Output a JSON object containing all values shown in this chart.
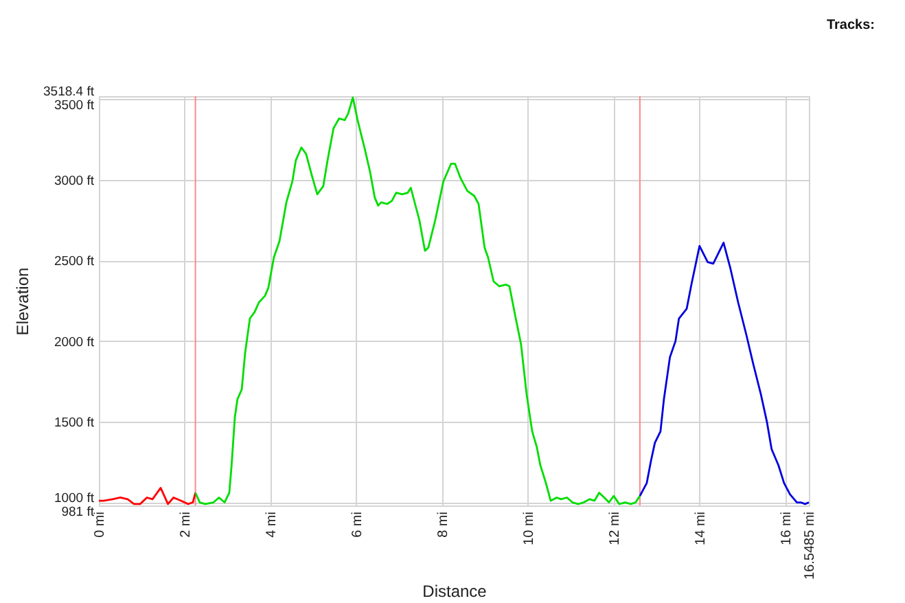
{
  "chart_data": {
    "type": "line",
    "xlabel": "Distance",
    "ylabel": "Elevation",
    "legend_title": "Tracks:",
    "grid": true,
    "xlim": [
      0,
      16.5485
    ],
    "ylim": [
      981,
      3518.4
    ],
    "xticks": [
      {
        "value": 0,
        "label": "0 mi"
      },
      {
        "value": 2,
        "label": "2 mi"
      },
      {
        "value": 4,
        "label": "4 mi"
      },
      {
        "value": 6,
        "label": "6 mi"
      },
      {
        "value": 8,
        "label": "8 mi"
      },
      {
        "value": 10,
        "label": "10 mi"
      },
      {
        "value": 12,
        "label": "12 mi"
      },
      {
        "value": 14,
        "label": "14 mi"
      },
      {
        "value": 16,
        "label": "16 mi"
      },
      {
        "value": 16.5485,
        "label": "16.5485 mi"
      }
    ],
    "yticks": [
      {
        "value": 981,
        "label": "981 ft"
      },
      {
        "value": 1000,
        "label": "1000 ft"
      },
      {
        "value": 1500,
        "label": "1500 ft"
      },
      {
        "value": 2000,
        "label": "2000 ft"
      },
      {
        "value": 2500,
        "label": "2500 ft"
      },
      {
        "value": 3000,
        "label": "3000 ft"
      },
      {
        "value": 3500,
        "label": "3500 ft"
      },
      {
        "value": 3518.4,
        "label": "3518.4 ft"
      }
    ],
    "ref_lines": [
      {
        "axis": "x",
        "value": 2.25,
        "color": "#ff8888"
      },
      {
        "axis": "x",
        "value": 12.61,
        "color": "#ff8888"
      }
    ],
    "series": [
      {
        "color": "#ff0000",
        "x": [
          0,
          0.11,
          0.32,
          0.5,
          0.67,
          0.82,
          0.96,
          1.12,
          1.25,
          1.44,
          1.61,
          1.74,
          1.92,
          2.08,
          2.19,
          2.25
        ],
        "values": [
          1010,
          1010,
          1020,
          1030,
          1020,
          990,
          990,
          1030,
          1020,
          1090,
          990,
          1030,
          1010,
          990,
          1000,
          1060
        ]
      },
      {
        "color": "#00dd00",
        "x": [
          2.25,
          2.35,
          2.48,
          2.67,
          2.8,
          2.93,
          3.04,
          3.09,
          3.17,
          3.23,
          3.33,
          3.41,
          3.52,
          3.63,
          3.73,
          3.87,
          3.95,
          4.08,
          4.21,
          4.37,
          4.51,
          4.59,
          4.72,
          4.83,
          4.96,
          5.09,
          5.23,
          5.33,
          5.47,
          5.6,
          5.73,
          5.81,
          5.92,
          6.03,
          6.19,
          6.32,
          6.43,
          6.51,
          6.58,
          6.72,
          6.83,
          6.93,
          7.07,
          7.2,
          7.27,
          7.47,
          7.6,
          7.68,
          7.84,
          8.03,
          8.21,
          8.3,
          8.43,
          8.59,
          8.75,
          8.85,
          8.99,
          9.07,
          9.2,
          9.33,
          9.49,
          9.57,
          9.71,
          9.84,
          9.97,
          10.1,
          10.21,
          10.29,
          10.42,
          10.53,
          10.67,
          10.77,
          10.91,
          11.04,
          11.17,
          11.3,
          11.44,
          11.55,
          11.66,
          11.78,
          11.89,
          12.0,
          12.13,
          12.27,
          12.4,
          12.51,
          12.61
        ],
        "values": [
          1060,
          1000,
          990,
          1000,
          1030,
          1000,
          1060,
          1220,
          1530,
          1640,
          1700,
          1930,
          2140,
          2180,
          2240,
          2280,
          2330,
          2520,
          2620,
          2860,
          2990,
          3120,
          3200,
          3160,
          3030,
          2910,
          2960,
          3120,
          3320,
          3380,
          3370,
          3410,
          3510,
          3370,
          3200,
          3050,
          2890,
          2840,
          2860,
          2850,
          2870,
          2920,
          2910,
          2920,
          2950,
          2750,
          2560,
          2580,
          2750,
          2990,
          3100,
          3100,
          3010,
          2930,
          2900,
          2850,
          2580,
          2520,
          2370,
          2340,
          2350,
          2340,
          2150,
          1980,
          1670,
          1440,
          1340,
          1230,
          1120,
          1010,
          1030,
          1020,
          1030,
          1000,
          990,
          1000,
          1020,
          1010,
          1060,
          1030,
          1000,
          1040,
          990,
          1000,
          990,
          1000,
          1040
        ]
      },
      {
        "color": "#0000dd",
        "x": [
          12.61,
          12.77,
          12.87,
          12.96,
          13.09,
          13.17,
          13.31,
          13.44,
          13.52,
          13.7,
          13.81,
          14.0,
          14.19,
          14.32,
          14.56,
          14.72,
          14.9,
          15.09,
          15.25,
          15.43,
          15.57,
          15.68,
          15.84,
          15.97,
          16.11,
          16.27,
          16.36,
          16.46,
          16.5485
        ],
        "values": [
          1040,
          1120,
          1260,
          1370,
          1440,
          1640,
          1900,
          2000,
          2140,
          2200,
          2350,
          2590,
          2490,
          2480,
          2610,
          2450,
          2240,
          2040,
          1860,
          1670,
          1500,
          1330,
          1230,
          1120,
          1050,
          1000,
          1000,
          990,
          1000
        ]
      }
    ]
  }
}
